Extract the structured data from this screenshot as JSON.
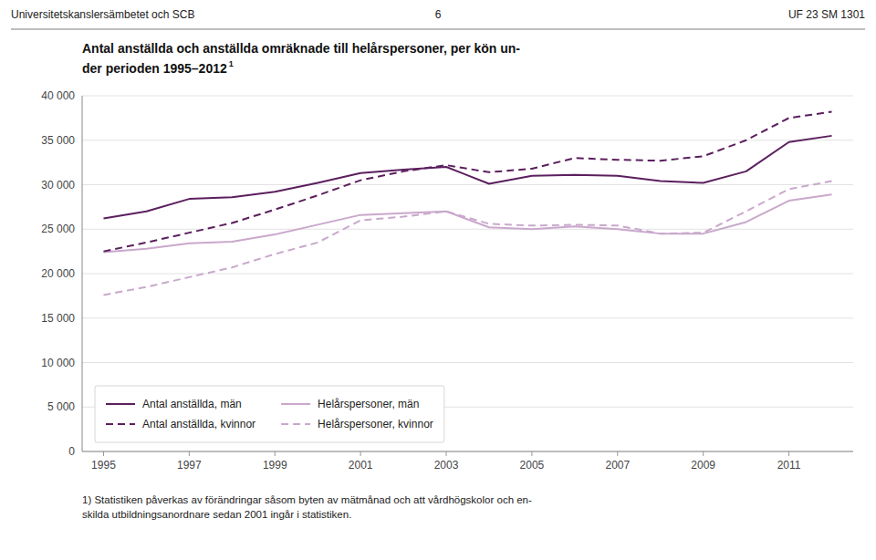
{
  "chart_data": {
    "type": "line",
    "title": "Antal anställda och anställda omräknade till helårspersoner, per kön un-",
    "subtitle": "der perioden 1995–2012",
    "annotations": [
      "Universitetskanslersämbetet och SCB",
      "6",
      "UF 23 SM 1301",
      "1",
      "1) Statistiken påverkas av förändringar såsom byten av mätmånad och att vårdhögskolor och en-",
      "skilda utbildningsanordnare sedan 2001 ingår i statistiken."
    ],
    "x": [
      1995,
      1996,
      1997,
      1998,
      1999,
      2000,
      2001,
      2002,
      2003,
      2004,
      2005,
      2006,
      2007,
      2008,
      2009,
      2010,
      2011,
      2012
    ],
    "xlim": [
      1994.5,
      2012.5
    ],
    "xticks": [
      1995,
      1997,
      1999,
      2001,
      2003,
      2005,
      2007,
      2009,
      2011
    ],
    "ylim": [
      0,
      40000
    ],
    "yticks": [
      0,
      {
        "value": 5000,
        "label": "5 000"
      },
      {
        "value": 10000,
        "label": "10 000"
      },
      {
        "value": 15000,
        "label": "15 000"
      },
      {
        "value": 20000,
        "label": "20 000"
      },
      {
        "value": 25000,
        "label": "25 000"
      },
      {
        "value": 30000,
        "label": "30 000"
      },
      {
        "value": 35000,
        "label": "35 000"
      },
      {
        "value": 40000,
        "label": "40 000"
      }
    ],
    "grid": true,
    "legend": "lower left",
    "series": [
      {
        "name": "Antal anställda, män",
        "color": "#5B1F5E",
        "line_style": "solid",
        "values": [
          26200,
          27000,
          28400,
          28600,
          29200,
          30200,
          31300,
          31700,
          32000,
          30100,
          31000,
          31100,
          31000,
          30400,
          30200,
          31500,
          34800,
          35500
        ]
      },
      {
        "name": "Antal anställda, kvinnor",
        "color": "#5B1F5E",
        "line_style": "dashed",
        "values": [
          22500,
          23500,
          24600,
          25700,
          27200,
          28800,
          30500,
          31500,
          32200,
          31400,
          31800,
          33000,
          32800,
          32700,
          33200,
          35000,
          37500,
          38200
        ]
      },
      {
        "name": "Helårspersoner, män",
        "color": "#C9A8CC",
        "line_style": "solid",
        "values": [
          22400,
          22800,
          23400,
          23600,
          24400,
          25500,
          26600,
          26800,
          27000,
          25200,
          25000,
          25300,
          25000,
          24500,
          24500,
          25800,
          28200,
          28900
        ]
      },
      {
        "name": "Helårspersoner, kvinnor",
        "color": "#C9A8CC",
        "line_style": "dashed",
        "values": [
          17600,
          18500,
          19600,
          20700,
          22200,
          23500,
          26000,
          26400,
          27000,
          25600,
          25400,
          25500,
          25400,
          24500,
          24600,
          27000,
          29500,
          30400
        ]
      }
    ]
  }
}
